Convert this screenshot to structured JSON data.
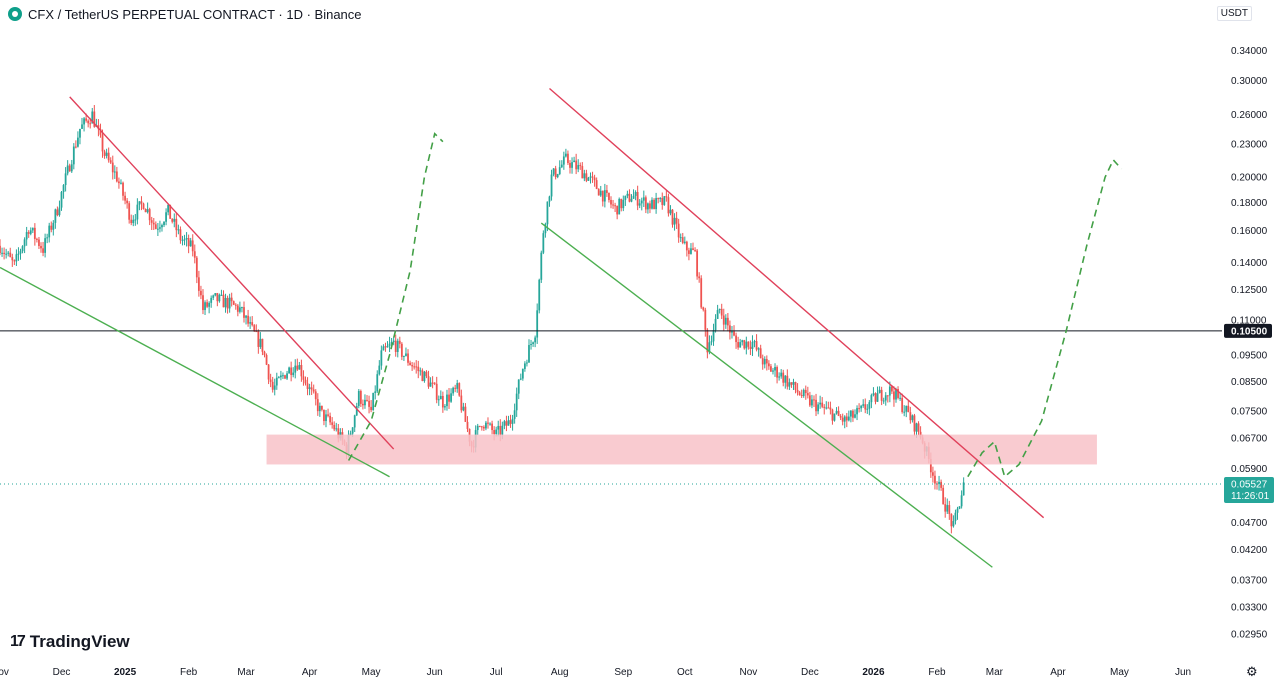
{
  "header": {
    "title": "CFX / TetherUS PERPETUAL CONTRACT · 1D · Binance"
  },
  "price_axis": {
    "unit": "USDT",
    "ticks": [
      {
        "label": "0.34000",
        "value": 0.34
      },
      {
        "label": "0.30000",
        "value": 0.3
      },
      {
        "label": "0.26000",
        "value": 0.26
      },
      {
        "label": "0.23000",
        "value": 0.23
      },
      {
        "label": "0.20000",
        "value": 0.2
      },
      {
        "label": "0.18000",
        "value": 0.18
      },
      {
        "label": "0.16000",
        "value": 0.16
      },
      {
        "label": "0.14000",
        "value": 0.14
      },
      {
        "label": "0.12500",
        "value": 0.125
      },
      {
        "label": "0.11000",
        "value": 0.11
      },
      {
        "label": "0.09500",
        "value": 0.095
      },
      {
        "label": "0.08500",
        "value": 0.085
      },
      {
        "label": "0.07500",
        "value": 0.075
      },
      {
        "label": "0.06700",
        "value": 0.067
      },
      {
        "label": "0.05900",
        "value": 0.059
      },
      {
        "label": "0.04700",
        "value": 0.047
      },
      {
        "label": "0.04200",
        "value": 0.042
      },
      {
        "label": "0.03700",
        "value": 0.037
      },
      {
        "label": "0.03300",
        "value": 0.033
      },
      {
        "label": "0.02950",
        "value": 0.0295
      }
    ],
    "level_label": "0.10500",
    "current_price": "0.05527",
    "countdown": "11:26:01"
  },
  "time_axis": [
    {
      "label": "Nov",
      "date": "2024-11-01",
      "year": false
    },
    {
      "label": "Dec",
      "date": "2024-12-01",
      "year": false
    },
    {
      "label": "2025",
      "date": "2025-01-01",
      "year": true
    },
    {
      "label": "Feb",
      "date": "2025-02-01",
      "year": false
    },
    {
      "label": "Mar",
      "date": "2025-03-01",
      "year": false
    },
    {
      "label": "Apr",
      "date": "2025-04-01",
      "year": false
    },
    {
      "label": "May",
      "date": "2025-05-01",
      "year": false
    },
    {
      "label": "Jun",
      "date": "2025-06-01",
      "year": false
    },
    {
      "label": "Jul",
      "date": "2025-07-01",
      "year": false
    },
    {
      "label": "Aug",
      "date": "2025-08-01",
      "year": false
    },
    {
      "label": "Sep",
      "date": "2025-09-01",
      "year": false
    },
    {
      "label": "Oct",
      "date": "2025-10-01",
      "year": false
    },
    {
      "label": "Nov",
      "date": "2025-11-01",
      "year": false
    },
    {
      "label": "Dec",
      "date": "2025-12-01",
      "year": false
    },
    {
      "label": "2026",
      "date": "2026-01-01",
      "year": true
    },
    {
      "label": "Feb",
      "date": "2026-02-01",
      "year": false
    },
    {
      "label": "Mar",
      "date": "2026-03-01",
      "year": false
    },
    {
      "label": "Apr",
      "date": "2026-04-01",
      "year": false
    },
    {
      "label": "May",
      "date": "2026-05-01",
      "year": false
    },
    {
      "label": "Jun",
      "date": "2026-06-01",
      "year": false
    }
  ],
  "chart_data": {
    "type": "line",
    "title": "",
    "xlabel": "",
    "ylabel": "",
    "y_scale": "log",
    "ylim": [
      0.027,
      0.38
    ],
    "xlim": [
      "2024-11-01",
      "2026-06-20"
    ],
    "grid": false,
    "colors": {
      "up": "#26a69a",
      "down": "#ef5350",
      "resistance": "#e0415b",
      "support": "#4caf50",
      "projection": "#43a047",
      "zone": "#f8c2c8",
      "level": "#131722"
    },
    "series": [
      {
        "x": [
          "2024-11-01",
          "2024-11-08",
          "2024-11-15",
          "2024-11-22",
          "2024-11-29",
          "2024-12-04",
          "2024-12-10",
          "2024-12-16",
          "2024-12-22",
          "2024-12-28",
          "2025-01-04",
          "2025-01-10",
          "2025-01-16",
          "2025-01-22",
          "2025-01-28",
          "2025-02-03",
          "2025-02-08",
          "2025-02-14",
          "2025-02-20",
          "2025-02-26",
          "2025-03-04",
          "2025-03-09",
          "2025-03-14",
          "2025-03-20",
          "2025-03-26",
          "2025-04-01",
          "2025-04-07",
          "2025-04-13",
          "2025-04-19",
          "2025-04-25",
          "2025-05-01",
          "2025-05-06",
          "2025-05-12",
          "2025-05-20",
          "2025-05-28",
          "2025-06-05",
          "2025-06-12",
          "2025-06-19",
          "2025-06-24",
          "2025-07-01",
          "2025-07-08",
          "2025-07-14",
          "2025-07-20",
          "2025-07-24",
          "2025-07-28",
          "2025-08-04",
          "2025-08-12",
          "2025-08-20",
          "2025-08-28",
          "2025-09-05",
          "2025-09-14",
          "2025-09-22",
          "2025-09-30",
          "2025-10-06",
          "2025-10-12",
          "2025-10-18",
          "2025-10-26",
          "2025-11-03",
          "2025-11-10",
          "2025-11-16",
          "2025-11-24",
          "2025-12-01",
          "2025-12-10",
          "2025-12-18",
          "2025-12-26",
          "2026-01-03",
          "2026-01-10",
          "2026-01-17",
          "2026-01-24",
          "2026-01-30",
          "2026-02-04",
          "2026-02-09",
          "2026-02-14"
        ],
        "y": [
          0.15,
          0.138,
          0.162,
          0.148,
          0.175,
          0.205,
          0.245,
          0.26,
          0.22,
          0.2,
          0.168,
          0.18,
          0.162,
          0.173,
          0.155,
          0.148,
          0.115,
          0.12,
          0.118,
          0.115,
          0.105,
          0.098,
          0.082,
          0.088,
          0.092,
          0.082,
          0.074,
          0.07,
          0.064,
          0.08,
          0.075,
          0.095,
          0.1,
          0.092,
          0.086,
          0.078,
          0.082,
          0.065,
          0.072,
          0.068,
          0.072,
          0.09,
          0.105,
          0.16,
          0.2,
          0.215,
          0.205,
          0.19,
          0.175,
          0.185,
          0.178,
          0.18,
          0.15,
          0.145,
          0.098,
          0.115,
          0.1,
          0.1,
          0.09,
          0.088,
          0.082,
          0.078,
          0.075,
          0.072,
          0.075,
          0.08,
          0.082,
          0.075,
          0.068,
          0.058,
          0.052,
          0.046,
          0.055
        ]
      }
    ],
    "annotations": {
      "resistance_lines": [
        {
          "from": [
            "2024-12-05",
            0.28
          ],
          "to": [
            "2025-05-12",
            0.064
          ]
        },
        {
          "from": [
            "2025-07-27",
            0.29
          ],
          "to": [
            "2026-03-25",
            0.048
          ]
        }
      ],
      "support_lines": [
        {
          "from": [
            "2024-11-01",
            0.137
          ],
          "to": [
            "2025-05-10",
            0.057
          ]
        },
        {
          "from": [
            "2025-07-23",
            0.165
          ],
          "to": [
            "2026-02-28",
            0.039
          ]
        }
      ],
      "zone": {
        "from": "2025-03-11",
        "to": "2026-04-20",
        "low": 0.06,
        "high": 0.068
      },
      "horizontal_level": 0.105,
      "current_price": 0.05527,
      "projections": [
        [
          [
            "2025-04-20",
            0.061
          ],
          [
            "2025-05-01",
            0.072
          ],
          [
            "2025-05-10",
            0.095
          ],
          [
            "2025-05-20",
            0.135
          ],
          [
            "2025-05-27",
            0.2
          ],
          [
            "2025-06-01",
            0.24
          ],
          [
            "2025-06-05",
            0.232
          ]
        ],
        [
          [
            "2026-02-16",
            0.057
          ],
          [
            "2026-02-23",
            0.063
          ],
          [
            "2026-03-01",
            0.066
          ],
          [
            "2026-03-06",
            0.057
          ],
          [
            "2026-03-13",
            0.06
          ],
          [
            "2026-03-24",
            0.072
          ],
          [
            "2026-04-05",
            0.105
          ],
          [
            "2026-04-15",
            0.15
          ],
          [
            "2026-04-24",
            0.2
          ],
          [
            "2026-04-28",
            0.215
          ],
          [
            "2026-05-02",
            0.207
          ]
        ]
      ]
    }
  }
}
